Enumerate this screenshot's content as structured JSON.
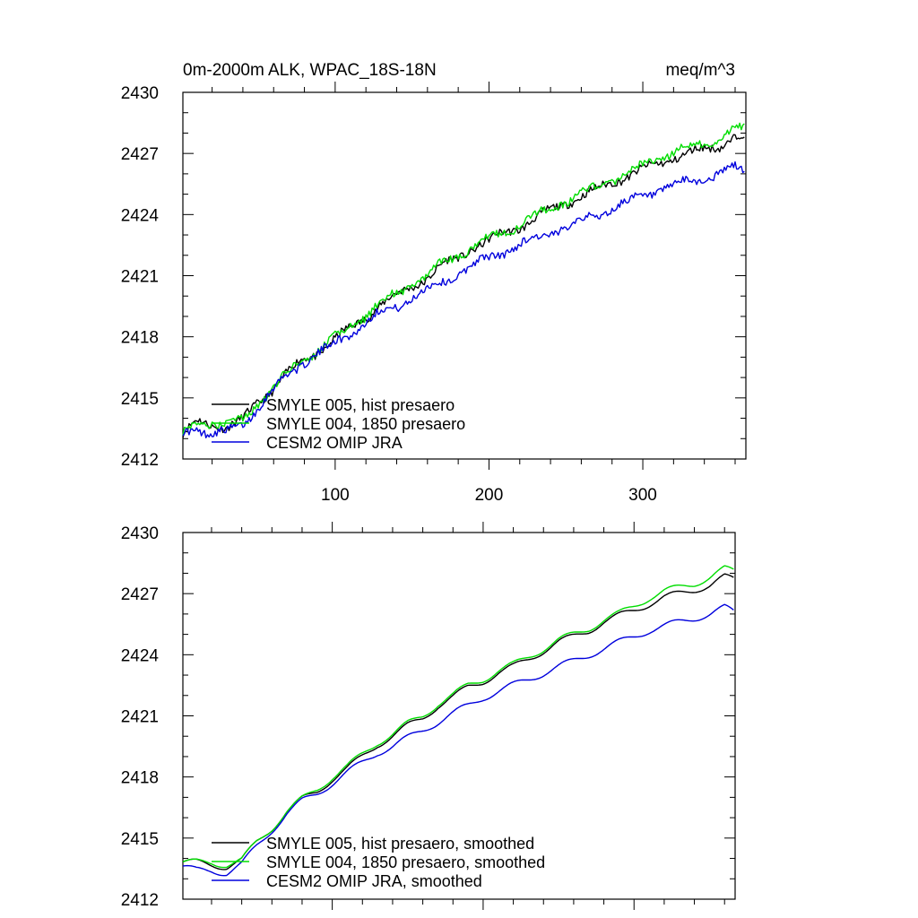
{
  "chart_data": [
    {
      "type": "line",
      "title": "0m-2000m ALK, WPAC_18S-18N",
      "units": "meq/m^3",
      "xlim": [
        1,
        367
      ],
      "ylim": [
        2412,
        2430
      ],
      "yticks": [
        2412,
        2415,
        2418,
        2421,
        2424,
        2427,
        2430
      ],
      "ytick_labels": [
        "2412",
        "2415",
        "2418",
        "2421",
        "2424",
        "2427",
        "2430"
      ],
      "xticks": [
        100,
        200,
        300
      ],
      "xtick_labels": [
        "100",
        "200",
        "300"
      ],
      "grid": false,
      "legend_position": "bottom-left",
      "smoothed": false,
      "anchor_x": [
        1,
        10,
        20,
        30,
        40,
        50,
        60,
        70,
        80,
        90,
        100,
        110,
        120,
        130,
        140,
        150,
        160,
        170,
        180,
        190,
        200,
        210,
        220,
        230,
        240,
        250,
        260,
        270,
        280,
        290,
        300,
        310,
        320,
        330,
        340,
        350,
        360,
        366
      ],
      "series": [
        {
          "name": "SMYLE 005, hist presaero",
          "color": "#000000",
          "values": [
            2413.2,
            2413.8,
            2413.7,
            2413.6,
            2413.9,
            2414.8,
            2415.5,
            2416.3,
            2416.9,
            2417.3,
            2417.9,
            2418.4,
            2419.0,
            2419.6,
            2420.0,
            2420.5,
            2420.9,
            2421.5,
            2421.9,
            2422.4,
            2422.7,
            2423.1,
            2423.4,
            2423.8,
            2424.2,
            2424.6,
            2424.9,
            2425.2,
            2425.6,
            2425.9,
            2426.2,
            2426.5,
            2426.8,
            2427.0,
            2427.2,
            2427.4,
            2427.8,
            2427.8
          ]
        },
        {
          "name": "SMYLE 004, 1850 presaero",
          "color": "#00dd00",
          "values": [
            2413.2,
            2413.8,
            2413.8,
            2413.7,
            2413.9,
            2414.8,
            2415.5,
            2416.3,
            2416.9,
            2417.4,
            2418.0,
            2418.5,
            2419.1,
            2419.7,
            2420.1,
            2420.6,
            2421.0,
            2421.6,
            2422.0,
            2422.5,
            2422.8,
            2423.2,
            2423.5,
            2423.9,
            2424.3,
            2424.7,
            2425.0,
            2425.3,
            2425.7,
            2426.0,
            2426.4,
            2426.8,
            2427.1,
            2427.3,
            2427.5,
            2427.8,
            2428.2,
            2428.2
          ]
        },
        {
          "name": "CESM2 OMIP JRA",
          "color": "#0000dd",
          "values": [
            2413.2,
            2413.5,
            2413.3,
            2413.3,
            2413.7,
            2414.6,
            2415.4,
            2416.2,
            2416.8,
            2417.2,
            2417.7,
            2418.2,
            2418.7,
            2419.2,
            2419.5,
            2419.9,
            2420.3,
            2420.7,
            2421.1,
            2421.5,
            2421.9,
            2422.2,
            2422.5,
            2422.8,
            2423.1,
            2423.4,
            2423.7,
            2424.0,
            2424.3,
            2424.6,
            2424.9,
            2425.2,
            2425.4,
            2425.6,
            2425.8,
            2426.0,
            2426.3,
            2426.1
          ]
        }
      ]
    },
    {
      "type": "line",
      "title": "",
      "units": "",
      "xlim": [
        1,
        367
      ],
      "ylim": [
        2412,
        2430
      ],
      "yticks": [
        2412,
        2415,
        2418,
        2421,
        2424,
        2427,
        2430
      ],
      "ytick_labels": [
        "2412",
        "2415",
        "2418",
        "2421",
        "2424",
        "2427",
        "2430"
      ],
      "xticks": [
        100,
        200,
        300
      ],
      "xtick_labels": [],
      "grid": false,
      "legend_position": "bottom-left",
      "smoothed": true,
      "anchor_x": [
        1,
        10,
        20,
        30,
        40,
        50,
        60,
        70,
        80,
        90,
        100,
        110,
        120,
        130,
        140,
        150,
        160,
        170,
        180,
        190,
        200,
        210,
        220,
        230,
        240,
        250,
        260,
        270,
        280,
        290,
        300,
        310,
        320,
        330,
        340,
        350,
        360,
        366
      ],
      "series": [
        {
          "name": "SMYLE 005, hist presaero, smoothed",
          "color": "#000000",
          "values": [
            2413.8,
            2413.8,
            2413.7,
            2413.6,
            2413.9,
            2414.8,
            2415.5,
            2416.3,
            2416.9,
            2417.3,
            2417.9,
            2418.4,
            2419.0,
            2419.6,
            2420.0,
            2420.5,
            2420.9,
            2421.5,
            2421.9,
            2422.4,
            2422.7,
            2423.1,
            2423.4,
            2423.8,
            2424.2,
            2424.6,
            2424.9,
            2425.2,
            2425.6,
            2425.9,
            2426.2,
            2426.5,
            2426.8,
            2427.0,
            2427.2,
            2427.4,
            2427.8,
            2427.7
          ]
        },
        {
          "name": "SMYLE 004, 1850 presaero, smoothed",
          "color": "#00dd00",
          "values": [
            2413.8,
            2413.8,
            2413.8,
            2413.7,
            2413.9,
            2414.8,
            2415.5,
            2416.3,
            2416.9,
            2417.4,
            2418.0,
            2418.5,
            2419.1,
            2419.7,
            2420.1,
            2420.6,
            2421.0,
            2421.6,
            2422.0,
            2422.5,
            2422.8,
            2423.2,
            2423.5,
            2423.9,
            2424.3,
            2424.7,
            2425.0,
            2425.3,
            2425.7,
            2426.0,
            2426.4,
            2426.8,
            2427.1,
            2427.3,
            2427.5,
            2427.8,
            2428.2,
            2428.1
          ]
        },
        {
          "name": "CESM2 OMIP JRA, smoothed",
          "color": "#0000dd",
          "values": [
            2413.6,
            2413.4,
            2413.4,
            2413.3,
            2413.7,
            2414.6,
            2415.4,
            2416.2,
            2416.8,
            2417.2,
            2417.7,
            2418.2,
            2418.7,
            2419.2,
            2419.5,
            2419.9,
            2420.3,
            2420.7,
            2421.1,
            2421.5,
            2421.9,
            2422.2,
            2422.5,
            2422.8,
            2423.1,
            2423.4,
            2423.7,
            2424.0,
            2424.3,
            2424.6,
            2424.9,
            2425.2,
            2425.4,
            2425.6,
            2425.8,
            2426.0,
            2426.3,
            2426.1
          ]
        }
      ]
    }
  ]
}
